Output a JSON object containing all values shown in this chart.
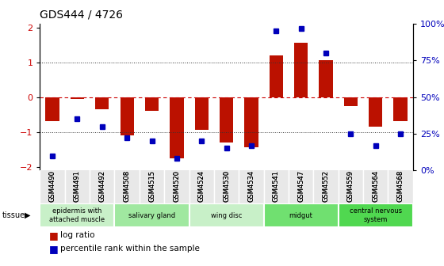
{
  "title": "GDS444 / 4726",
  "samples": [
    "GSM4490",
    "GSM4491",
    "GSM4492",
    "GSM4508",
    "GSM4515",
    "GSM4520",
    "GSM4524",
    "GSM4530",
    "GSM4534",
    "GSM4541",
    "GSM4547",
    "GSM4552",
    "GSM4559",
    "GSM4564",
    "GSM4568"
  ],
  "log_ratio": [
    -0.7,
    -0.05,
    -0.35,
    -1.1,
    -0.4,
    -1.75,
    -0.95,
    -1.3,
    -1.45,
    1.2,
    1.55,
    1.05,
    -0.25,
    -0.85,
    -0.7
  ],
  "percentile": [
    10,
    35,
    30,
    22,
    20,
    8,
    20,
    15,
    17,
    95,
    97,
    80,
    25,
    17,
    25
  ],
  "tissue_groups": [
    {
      "label": "epidermis with\nattached muscle",
      "start": 0,
      "end": 2,
      "color": "#c8f0c8"
    },
    {
      "label": "salivary gland",
      "start": 3,
      "end": 5,
      "color": "#a0e8a0"
    },
    {
      "label": "wing disc",
      "start": 6,
      "end": 8,
      "color": "#c8f0c8"
    },
    {
      "label": "midgut",
      "start": 9,
      "end": 11,
      "color": "#70e070"
    },
    {
      "label": "central nervous\nsystem",
      "start": 12,
      "end": 14,
      "color": "#50d850"
    }
  ],
  "bar_color": "#bb1100",
  "dot_color": "#0000bb",
  "ylim": [
    -2.1,
    2.1
  ],
  "y2lim": [
    0,
    100
  ],
  "yticks_left": [
    -2,
    -1,
    0,
    1,
    2
  ],
  "yticks_right": [
    0,
    25,
    50,
    75,
    100
  ],
  "hline_color": "#cc0000",
  "dotline_color": "#333333",
  "bg_color": "#ffffff",
  "plot_bg": "#ffffff"
}
